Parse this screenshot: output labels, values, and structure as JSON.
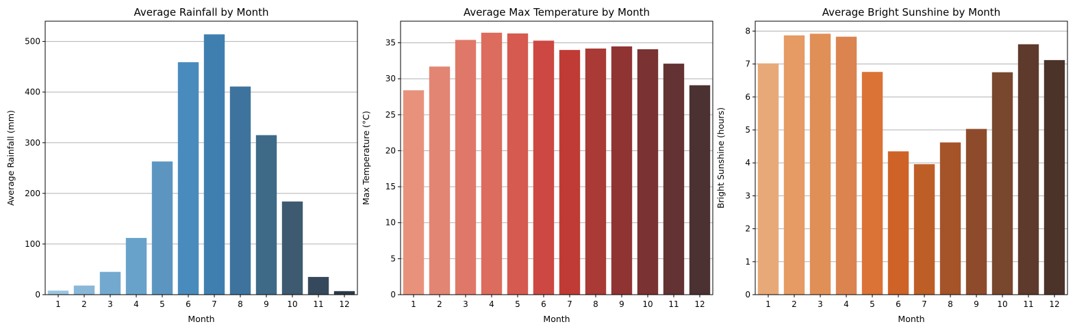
{
  "chart_data": [
    {
      "type": "bar",
      "title": "Average Rainfall by Month",
      "xlabel": "Month",
      "ylabel": "Average Rainfall (mm)",
      "categories": [
        "1",
        "2",
        "3",
        "4",
        "5",
        "6",
        "7",
        "8",
        "9",
        "10",
        "11",
        "12"
      ],
      "values": [
        8,
        18,
        45,
        112,
        263,
        459,
        514,
        411,
        315,
        184,
        35,
        7
      ],
      "ylim": [
        0,
        540
      ],
      "yticks": [
        0,
        100,
        200,
        300,
        400,
        500
      ],
      "grid": "y",
      "colors": [
        "#9cc5e0",
        "#88b7d8",
        "#74a9cf",
        "#68a2cb",
        "#5c96c0",
        "#4a8bbd",
        "#3f7faf",
        "#3e739e",
        "#3e6a88",
        "#3d5a70",
        "#36495c",
        "#2d3a47"
      ]
    },
    {
      "type": "bar",
      "title": "Average Max Temperature by Month",
      "xlabel": "Month",
      "ylabel": "Max Temperature (°C)",
      "categories": [
        "1",
        "2",
        "3",
        "4",
        "5",
        "6",
        "7",
        "8",
        "9",
        "10",
        "11",
        "12"
      ],
      "values": [
        28.4,
        31.7,
        35.4,
        36.4,
        36.3,
        35.3,
        34.0,
        34.2,
        34.5,
        34.1,
        32.1,
        29.1
      ],
      "ylim": [
        0,
        38
      ],
      "yticks": [
        0,
        5,
        10,
        15,
        20,
        25,
        30,
        35
      ],
      "grid": "y",
      "colors": [
        "#e8927c",
        "#e38573",
        "#df7868",
        "#dc6c5d",
        "#d65a4f",
        "#cd4842",
        "#c03b35",
        "#a93a36",
        "#903333",
        "#7a3232",
        "#633232",
        "#4b3131"
      ]
    },
    {
      "type": "bar",
      "title": "Average Bright Sunshine by Month",
      "xlabel": "Month",
      "ylabel": "Bright Sunshine (hours)",
      "categories": [
        "1",
        "2",
        "3",
        "4",
        "5",
        "6",
        "7",
        "8",
        "9",
        "10",
        "11",
        "12"
      ],
      "values": [
        7.02,
        7.87,
        7.92,
        7.83,
        6.76,
        4.35,
        3.96,
        4.62,
        5.03,
        6.75,
        7.6,
        7.12
      ],
      "ylim": [
        0,
        8.3
      ],
      "yticks": [
        0,
        1,
        2,
        3,
        4,
        5,
        6,
        7,
        8
      ],
      "grid": "y",
      "colors": [
        "#e8a978",
        "#e59b63",
        "#e08f57",
        "#db8450",
        "#db7236",
        "#cf6327",
        "#bd5e27",
        "#a45428",
        "#8e4b2b",
        "#78472e",
        "#5e3a2c",
        "#4b3329"
      ]
    }
  ]
}
